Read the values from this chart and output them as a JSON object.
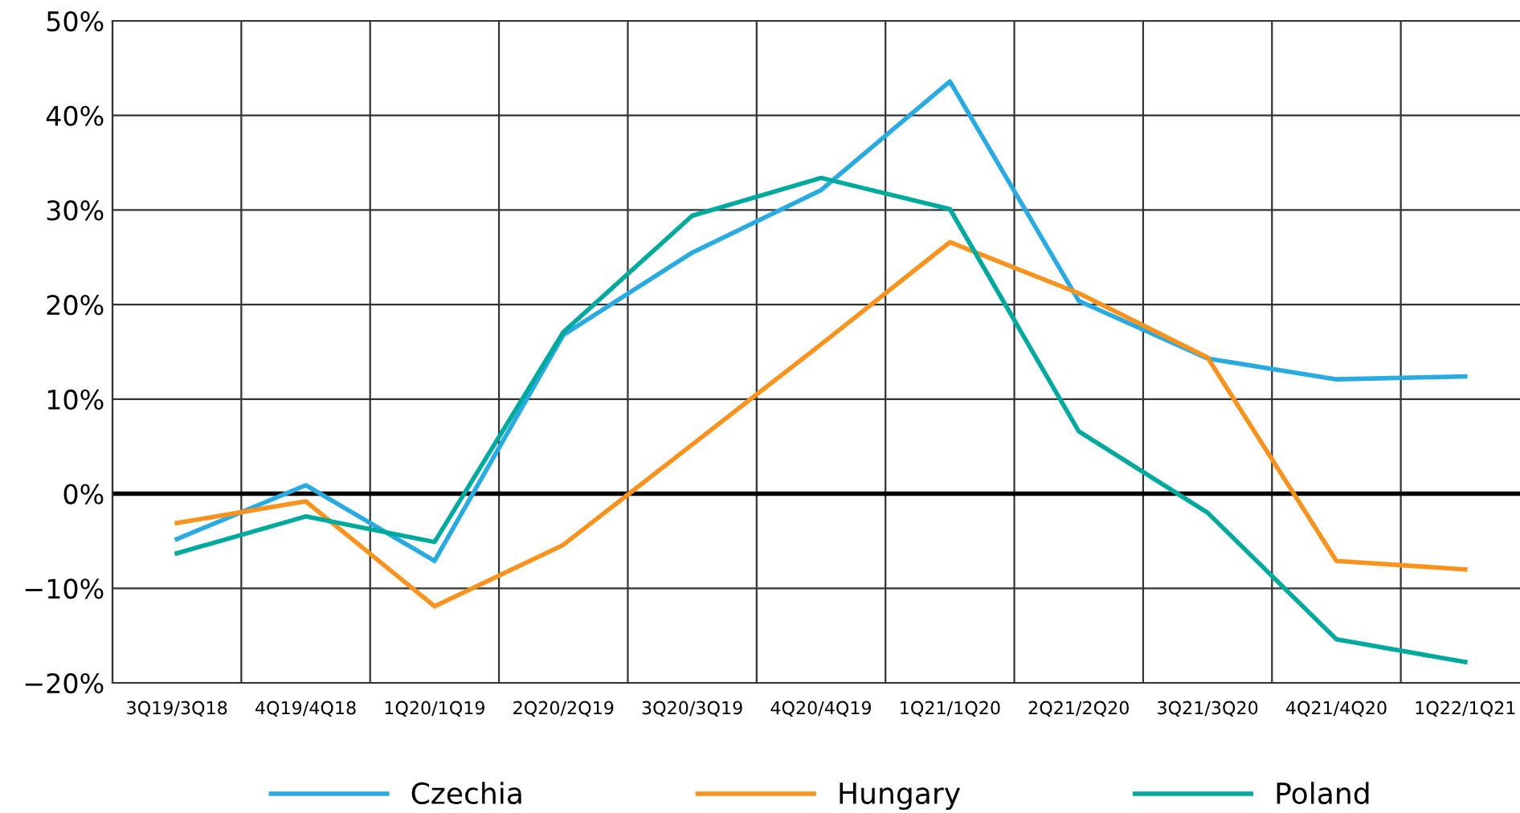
{
  "chart_data": {
    "type": "line",
    "categories": [
      "3Q19/3Q18",
      "4Q19/4Q18",
      "1Q20/1Q19",
      "2Q20/2Q19",
      "3Q20/3Q19",
      "4Q20/4Q19",
      "1Q21/1Q20",
      "2Q21/2Q20",
      "3Q21/3Q20",
      "4Q21/4Q20",
      "1Q22/1Q21"
    ],
    "series": [
      {
        "name": "Czechia",
        "color": "#29abe2",
        "values": [
          -4.8,
          0.9,
          -7.1,
          16.8,
          25.5,
          32.1,
          43.6,
          20.4,
          14.3,
          12.1,
          12.4
        ]
      },
      {
        "name": "Hungary",
        "color": "#f7931e",
        "values": [
          -3.1,
          -0.8,
          -11.9,
          -5.4,
          5.2,
          15.8,
          26.6,
          21.2,
          14.4,
          -7.1,
          -8.0
        ]
      },
      {
        "name": "Poland",
        "color": "#00a99d",
        "values": [
          -6.3,
          -2.4,
          -5.1,
          17.1,
          29.4,
          33.4,
          30.1,
          6.6,
          -2.0,
          -15.4,
          -17.8
        ]
      }
    ],
    "ylim": [
      -20,
      50
    ],
    "yticks": [
      {
        "value": -20,
        "label": "−20%"
      },
      {
        "value": -10,
        "label": "−10%"
      },
      {
        "value": 0,
        "label": "0%"
      },
      {
        "value": 10,
        "label": "10%"
      },
      {
        "value": 20,
        "label": "20%"
      },
      {
        "value": 30,
        "label": "30%"
      },
      {
        "value": 40,
        "label": "40%"
      },
      {
        "value": 50,
        "label": "50%"
      }
    ],
    "ref_lines": [
      {
        "axis": "y",
        "value": 0,
        "color": "#000000"
      }
    ],
    "grid": true,
    "legend": "bottom",
    "marker": "none",
    "line_style": "solid"
  }
}
